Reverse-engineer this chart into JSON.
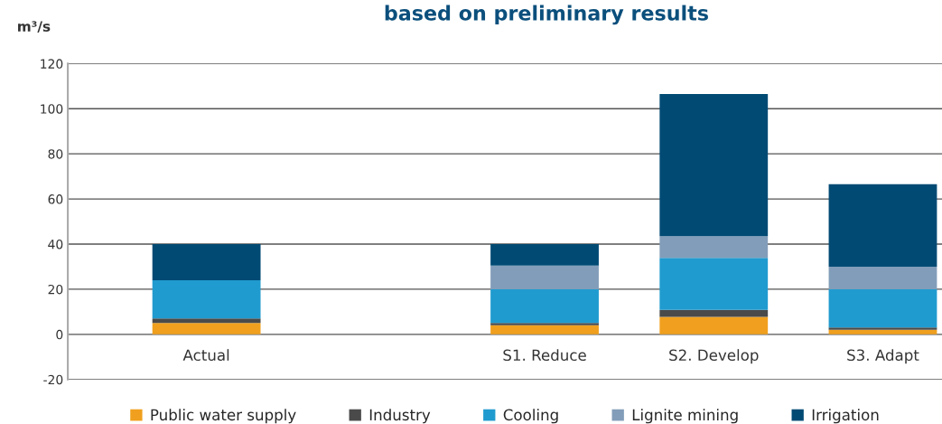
{
  "chart_data": {
    "type": "bar",
    "title": "based on preliminary results",
    "ylabel": "m³/s",
    "stacked": true,
    "categories": [
      "Actual",
      null,
      "S1. Reduce",
      "S2. Develop",
      "S3. Adapt"
    ],
    "series": [
      {
        "name": "Public water supply",
        "color": "#f0a01e",
        "values": [
          5,
          null,
          4,
          7.7,
          2
        ]
      },
      {
        "name": "Industry",
        "color": "#4a4a4a",
        "values": [
          2,
          null,
          1,
          3.2,
          1
        ]
      },
      {
        "name": "Cooling",
        "color": "#209bcf",
        "values": [
          17,
          null,
          15,
          23,
          17
        ]
      },
      {
        "name": "Lignite mining",
        "color": "#829db9",
        "values": [
          null,
          null,
          10.5,
          9.6,
          10
        ]
      },
      {
        "name": "Irrigation",
        "color": "#014a74",
        "values": [
          16,
          null,
          9.5,
          63,
          36.5
        ]
      }
    ],
    "ylim": [
      -20,
      120
    ],
    "yticks": [
      -20,
      0,
      20,
      40,
      60,
      80,
      100,
      120
    ],
    "grid": "y",
    "legend": "bottom"
  }
}
